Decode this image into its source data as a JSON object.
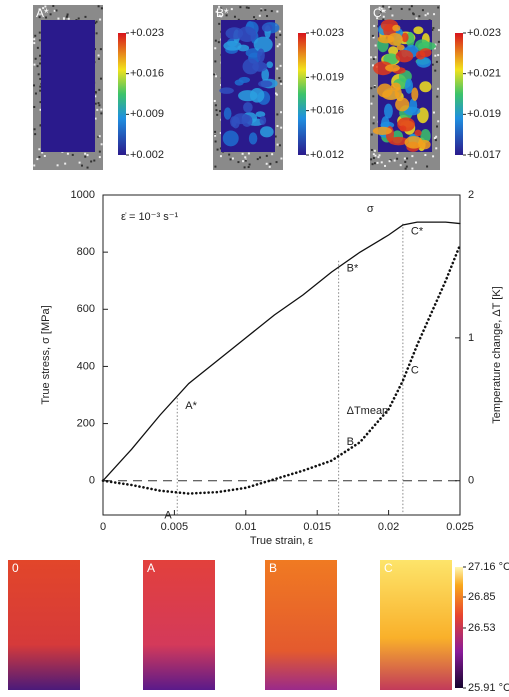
{
  "chart_data": {
    "type": "line",
    "rate_label": "ε̇ = 10⁻³ s⁻¹",
    "xlabel": "True strain, ε",
    "ylabel": "True stress, σ [MPa]",
    "y2label": "Temperature change, ΔT [K]",
    "x": [
      0,
      0.002,
      0.004,
      0.006,
      0.008,
      0.01,
      0.012,
      0.014,
      0.016,
      0.018,
      0.02,
      0.021,
      0.022,
      0.024,
      0.025
    ],
    "series": [
      {
        "name": "σ",
        "color": "#111111",
        "style": "solid",
        "values": [
          0,
          110,
          230,
          340,
          420,
          500,
          580,
          650,
          730,
          800,
          860,
          895,
          905,
          905,
          900
        ]
      },
      {
        "name": "ΔTmean",
        "color": "#111111",
        "style": "dotted",
        "axis": "y2",
        "values": [
          0,
          -0.03,
          -0.07,
          -0.09,
          -0.08,
          -0.05,
          0.01,
          0.07,
          0.14,
          0.27,
          0.5,
          0.7,
          0.95,
          1.4,
          1.65
        ]
      }
    ],
    "annotations": [
      {
        "label": "A*",
        "x": 0.0052,
        "y": 290
      },
      {
        "label": "B*",
        "x": 0.0165,
        "y": 770
      },
      {
        "label": "C*",
        "x": 0.021,
        "y": 900
      },
      {
        "label": "A",
        "x": 0.005,
        "y": -0.09,
        "axis": "y2"
      },
      {
        "label": "B",
        "x": 0.0165,
        "y": 0.2,
        "axis": "y2"
      },
      {
        "label": "C",
        "x": 0.021,
        "y": 0.7,
        "axis": "y2"
      }
    ],
    "xlim": [
      0,
      0.025
    ],
    "xticks": [
      0,
      0.005,
      0.01,
      0.015,
      0.02,
      0.025
    ],
    "ylim": [
      -120,
      1000
    ],
    "yticks": [
      0,
      200,
      400,
      600,
      800,
      1000
    ],
    "y2lim": [
      -0.24,
      2
    ],
    "y2ticks": [
      0,
      1,
      2
    ]
  },
  "strain_maps": [
    {
      "label": "A*",
      "colorbar": [
        {
          "value": 0.023,
          "label": "+0.023"
        },
        {
          "value": 0.016,
          "label": "+0.016"
        },
        {
          "value": 0.009,
          "label": "+0.009"
        },
        {
          "value": 0.002,
          "label": "+0.002"
        }
      ]
    },
    {
      "label": "B*",
      "colorbar": [
        {
          "value": 0.023,
          "label": "+0.023"
        },
        {
          "value": 0.019,
          "label": "+0.019"
        },
        {
          "value": 0.016,
          "label": "+0.016"
        },
        {
          "value": 0.012,
          "label": "+0.012"
        }
      ]
    },
    {
      "label": "C*",
      "colorbar": [
        {
          "value": 0.023,
          "label": "+0.023"
        },
        {
          "value": 0.021,
          "label": "+0.021"
        },
        {
          "value": 0.019,
          "label": "+0.019"
        },
        {
          "value": 0.017,
          "label": "+0.017"
        }
      ]
    }
  ],
  "thermal_maps": {
    "labels": [
      "0",
      "A",
      "B",
      "C"
    ],
    "colorbar": [
      {
        "value": 27.16,
        "label": "27.16 °C"
      },
      26.85,
      26.53,
      {
        "value": 25.91,
        "label": "25.91 °C"
      }
    ]
  }
}
